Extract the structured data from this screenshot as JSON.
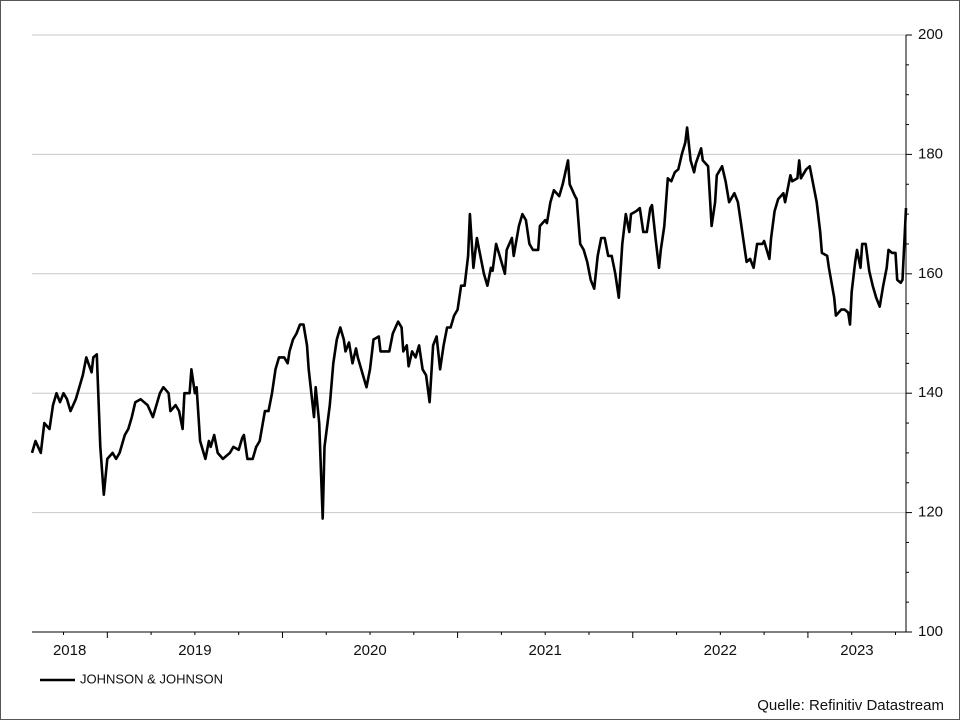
{
  "chart_data": {
    "type": "line",
    "source": "Quelle: Refinitiv Datastream",
    "x": [
      2018.57,
      2018.59,
      2018.62,
      2018.64,
      2018.67,
      2018.69,
      2018.71,
      2018.73,
      2018.75,
      2018.77,
      2018.79,
      2018.82,
      2018.84,
      2018.86,
      2018.88,
      2018.91,
      2018.92,
      2018.94,
      2018.96,
      2018.98,
      2019.0,
      2019.03,
      2019.05,
      2019.07,
      2019.1,
      2019.12,
      2019.14,
      2019.16,
      2019.19,
      2019.21,
      2019.23,
      2019.26,
      2019.28,
      2019.3,
      2019.32,
      2019.35,
      2019.36,
      2019.39,
      2019.41,
      2019.43,
      2019.44,
      2019.47,
      2019.48,
      2019.5,
      2019.51,
      2019.53,
      2019.55,
      2019.56,
      2019.58,
      2019.59,
      2019.61,
      2019.63,
      2019.66,
      2019.68,
      2019.7,
      2019.72,
      2019.75,
      2019.77,
      2019.78,
      2019.8,
      2019.83,
      2019.85,
      2019.87,
      2019.9,
      2019.92,
      2019.94,
      2019.96,
      2019.98,
      2020.01,
      2020.03,
      2020.04,
      2020.06,
      2020.08,
      2020.1,
      2020.12,
      2020.14,
      2020.15,
      2020.18,
      2020.19,
      2020.21,
      2020.23,
      2020.24,
      2020.27,
      2020.29,
      2020.31,
      2020.33,
      2020.35,
      2020.36,
      2020.38,
      2020.4,
      2020.42,
      2020.43,
      2020.46,
      2020.48,
      2020.5,
      2020.52,
      2020.55,
      2020.56,
      2020.59,
      2020.61,
      2020.63,
      2020.66,
      2020.68,
      2020.69,
      2020.71,
      2020.72,
      2020.74,
      2020.76,
      2020.78,
      2020.8,
      2020.82,
      2020.84,
      2020.86,
      2020.88,
      2020.9,
      2020.92,
      2020.94,
      2020.96,
      2020.98,
      2021.0,
      2021.02,
      2021.04,
      2021.06,
      2021.07,
      2021.09,
      2021.11,
      2021.12,
      2021.15,
      2021.17,
      2021.19,
      2021.2,
      2021.22,
      2021.24,
      2021.27,
      2021.28,
      2021.31,
      2021.32,
      2021.35,
      2021.37,
      2021.39,
      2021.41,
      2021.43,
      2021.46,
      2021.47,
      2021.5,
      2021.51,
      2021.53,
      2021.55,
      2021.58,
      2021.6,
      2021.63,
      2021.64,
      2021.67,
      2021.68,
      2021.7,
      2021.72,
      2021.74,
      2021.76,
      2021.78,
      2021.8,
      2021.82,
      2021.84,
      2021.86,
      2021.88,
      2021.9,
      2021.92,
      2021.94,
      2021.96,
      2021.98,
      2021.99,
      2022.02,
      2022.04,
      2022.06,
      2022.08,
      2022.1,
      2022.11,
      2022.13,
      2022.15,
      2022.16,
      2022.18,
      2022.2,
      2022.22,
      2022.24,
      2022.26,
      2022.28,
      2022.3,
      2022.31,
      2022.33,
      2022.35,
      2022.36,
      2022.39,
      2022.4,
      2022.43,
      2022.45,
      2022.47,
      2022.48,
      2022.51,
      2022.53,
      2022.55,
      2022.58,
      2022.6,
      2022.62,
      2022.63,
      2022.65,
      2022.67,
      2022.69,
      2022.71,
      2022.74,
      2022.75,
      2022.78,
      2022.79,
      2022.81,
      2022.83,
      2022.86,
      2022.87,
      2022.9,
      2022.91,
      2022.94,
      2022.95,
      2022.96,
      2022.99,
      2023.01,
      2023.03,
      2023.05,
      2023.07,
      2023.08,
      2023.11,
      2023.12,
      2023.15,
      2023.16,
      2023.19,
      2023.21,
      2023.23,
      2023.24,
      2023.25,
      2023.27,
      2023.28,
      2023.3,
      2023.31,
      2023.33,
      2023.35,
      2023.37,
      2023.39,
      2023.41,
      2023.43,
      2023.45,
      2023.46,
      2023.48,
      2023.5,
      2023.51,
      2023.53,
      2023.54,
      2023.56
    ],
    "series": [
      {
        "name": "JOHNSON & JOHNSON",
        "color": "#000000",
        "values": [
          130,
          132,
          130,
          135,
          134,
          138,
          140,
          138.5,
          140,
          139,
          137,
          139,
          141,
          143,
          146,
          143.5,
          146,
          146.5,
          131,
          123,
          129,
          130,
          129,
          130,
          133,
          134,
          136,
          138.5,
          139,
          138.5,
          138,
          136,
          138,
          140,
          141,
          140,
          137,
          138,
          137,
          134,
          140,
          140,
          144,
          140,
          141,
          132,
          130,
          129,
          132,
          131,
          133,
          130,
          129,
          129.5,
          130,
          131,
          130.5,
          132.5,
          133,
          129,
          129,
          131,
          132,
          137,
          137,
          140,
          144,
          146,
          146,
          145,
          147,
          149,
          150,
          151.5,
          151.5,
          148,
          144,
          136,
          141,
          135,
          119,
          131,
          138,
          145,
          149,
          151,
          149,
          147,
          148.5,
          145,
          147.5,
          146,
          143,
          141,
          144,
          149,
          149.5,
          147,
          147,
          147,
          150,
          152,
          151,
          147,
          148,
          144.5,
          147,
          146,
          148,
          144,
          143,
          138.5,
          148,
          149.5,
          144,
          148,
          151,
          151,
          153,
          154,
          158,
          158,
          163,
          170,
          161,
          166,
          164.5,
          160,
          158,
          161,
          160.5,
          165,
          163,
          160,
          164,
          166,
          163,
          168,
          170,
          169,
          165,
          164,
          164,
          168,
          169,
          168.5,
          172,
          174,
          173,
          175,
          179,
          175,
          173,
          172.5,
          165,
          164,
          162,
          159,
          157.5,
          163,
          166,
          166,
          163,
          163,
          160,
          156,
          165,
          170,
          167,
          170,
          170.5,
          171,
          167,
          167,
          171,
          171.5,
          166,
          161,
          164,
          168,
          176,
          175.5,
          177,
          177.5,
          180,
          182,
          184.5,
          179,
          177,
          178.5,
          181,
          179,
          178,
          168,
          172,
          176.5,
          178,
          175.5,
          172,
          173.5,
          172,
          168,
          166,
          162,
          162.5,
          161,
          165,
          165,
          165.5,
          162.5,
          166,
          170.5,
          172.5,
          173.5,
          172,
          176.5,
          175.5,
          176,
          179,
          176,
          177.5,
          178,
          175,
          172,
          167,
          163.5,
          163,
          161,
          156,
          153,
          154,
          154,
          153.5,
          151.5,
          157,
          162,
          164,
          161,
          165,
          165,
          160.5,
          158,
          156,
          154.5,
          158,
          161,
          164,
          163.5,
          163.5,
          159,
          158.5,
          159,
          171
        ]
      }
    ],
    "xlim": [
      2018.57,
      2023.56
    ],
    "xticks": [
      2018,
      2019,
      2020,
      2021,
      2022,
      2023
    ],
    "ylim": [
      100,
      200
    ],
    "yticks": [
      100,
      120,
      140,
      160,
      180,
      200
    ],
    "grid": true,
    "y_axis_side": "right",
    "legend": "bottom-left"
  }
}
